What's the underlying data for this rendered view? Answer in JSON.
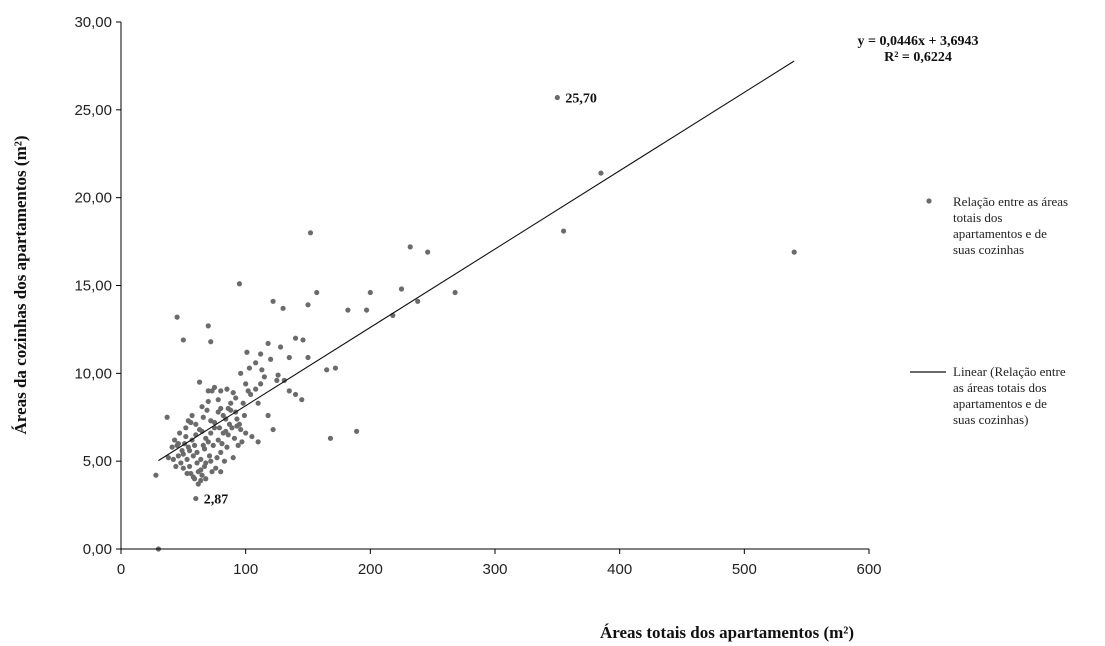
{
  "chart_data": {
    "type": "scatter",
    "xlabel": "Áreas totais dos apartamentos (m²)",
    "ylabel": "Áreas da cozinhas dos apartamentos (m²)",
    "xlim": [
      0,
      600
    ],
    "ylim": [
      0,
      30
    ],
    "x_ticks": [
      "0",
      "100",
      "200",
      "300",
      "400",
      "500",
      "600"
    ],
    "y_ticks": [
      "0,00",
      "5,00",
      "10,00",
      "15,00",
      "20,00",
      "25,00",
      "30,00"
    ],
    "grid": false,
    "legend_position": "right",
    "colors": {
      "points": "#6b6b6b",
      "trend": "#111111",
      "axis": "#000000"
    },
    "series": [
      {
        "name": "Relação entre as áreas totais dos apartamentos e de suas cozinhas",
        "kind": "points",
        "points": [
          [
            30,
            0
          ],
          [
            28,
            4.2
          ],
          [
            38,
            5.2
          ],
          [
            37,
            7.5
          ],
          [
            45,
            13.2
          ],
          [
            50,
            11.9
          ],
          [
            60,
            2.87
          ],
          [
            70,
            12.7
          ],
          [
            72,
            11.8
          ],
          [
            95,
            15.1
          ],
          [
            122,
            14.1
          ],
          [
            150,
            13.9
          ],
          [
            152,
            18
          ],
          [
            157,
            14.6
          ],
          [
            182,
            13.6
          ],
          [
            200,
            14.6
          ],
          [
            197,
            13.6
          ],
          [
            218,
            13.3
          ],
          [
            225,
            14.8
          ],
          [
            232,
            17.2
          ],
          [
            238,
            14.1
          ],
          [
            246,
            16.9
          ],
          [
            268,
            14.6
          ],
          [
            350,
            25.7
          ],
          [
            355,
            18.1
          ],
          [
            385,
            21.4
          ],
          [
            540,
            16.9
          ],
          [
            189,
            6.7
          ],
          [
            168,
            6.3
          ],
          [
            165,
            10.2
          ],
          [
            172,
            10.3
          ],
          [
            130,
            13.7
          ],
          [
            140,
            12
          ],
          [
            128,
            11.5
          ],
          [
            118,
            11.7
          ],
          [
            112,
            11.1
          ],
          [
            101,
            11.2
          ],
          [
            103,
            10.3
          ],
          [
            108,
            10.6
          ],
          [
            113,
            10.2
          ],
          [
            120,
            10.8
          ],
          [
            126,
            9.9
          ],
          [
            131,
            9.6
          ],
          [
            135,
            10.9
          ],
          [
            140,
            8.8
          ],
          [
            145,
            8.5
          ],
          [
            146,
            11.9
          ],
          [
            150,
            10.9
          ],
          [
            108,
            9.1
          ],
          [
            112,
            9.4
          ],
          [
            100,
            9.4
          ],
          [
            90,
            8.9
          ],
          [
            85,
            9.1
          ],
          [
            80,
            9.0
          ],
          [
            78,
            8.5
          ],
          [
            73,
            9.0
          ],
          [
            70,
            8.4
          ],
          [
            75,
            7.2
          ],
          [
            82,
            6.6
          ],
          [
            88,
            7.9
          ],
          [
            93,
            7.4
          ],
          [
            96,
            6.8
          ],
          [
            100,
            6.6
          ],
          [
            105,
            6.4
          ],
          [
            110,
            6.1
          ],
          [
            118,
            7.6
          ],
          [
            122,
            6.8
          ],
          [
            90,
            5.2
          ],
          [
            85,
            5.8
          ],
          [
            80,
            5.5
          ],
          [
            76,
            4.6
          ],
          [
            73,
            4.4
          ],
          [
            68,
            4.9
          ],
          [
            65,
            4.2
          ],
          [
            62,
            3.7
          ],
          [
            58,
            4.1
          ],
          [
            55,
            4.7
          ],
          [
            53,
            5.1
          ],
          [
            50,
            5.4
          ],
          [
            48,
            4.9
          ],
          [
            45,
            5.9
          ],
          [
            43,
            6.2
          ],
          [
            47,
            6.6
          ],
          [
            52,
            6.9
          ],
          [
            56,
            7.2
          ],
          [
            60,
            6.5
          ],
          [
            63,
            6.8
          ],
          [
            66,
            7.5
          ],
          [
            69,
            7.9
          ],
          [
            72,
            7.3
          ],
          [
            75,
            6.9
          ],
          [
            78,
            6.2
          ],
          [
            81,
            6.0
          ],
          [
            84,
            6.7
          ],
          [
            87,
            7.1
          ],
          [
            91,
            6.3
          ],
          [
            94,
            5.9
          ],
          [
            97,
            6.1
          ],
          [
            59,
            5.9
          ],
          [
            61,
            5.5
          ],
          [
            64,
            5.1
          ],
          [
            67,
            5.7
          ],
          [
            70,
            6.1
          ],
          [
            57,
            6.2
          ],
          [
            54,
            5.8
          ],
          [
            51,
            6.0
          ],
          [
            49,
            5.6
          ],
          [
            46,
            5.3
          ],
          [
            44,
            4.7
          ],
          [
            42,
            5.1
          ],
          [
            63,
            9.5
          ],
          [
            70,
            9.0
          ],
          [
            75,
            9.2
          ],
          [
            88,
            8.3
          ],
          [
            82,
            7.6
          ],
          [
            92,
            7.8
          ],
          [
            98,
            8.3
          ],
          [
            104,
            8.8
          ],
          [
            95,
            7.1
          ],
          [
            86,
            6.5
          ],
          [
            79,
            6.9
          ],
          [
            74,
            5.9
          ],
          [
            71,
            5.3
          ],
          [
            67,
            4.7
          ],
          [
            64,
            4.5
          ],
          [
            61,
            4.9
          ],
          [
            58,
            5.3
          ],
          [
            55,
            5.6
          ],
          [
            52,
            6.4
          ],
          [
            56,
            4.3
          ],
          [
            59,
            4.0
          ],
          [
            62,
            4.4
          ],
          [
            66,
            5.9
          ],
          [
            77,
            5.2
          ],
          [
            83,
            5.0
          ],
          [
            89,
            6.9
          ],
          [
            72,
            6.6
          ],
          [
            68,
            6.3
          ],
          [
            65,
            6.7
          ],
          [
            60,
            7.1
          ],
          [
            57,
            7.6
          ],
          [
            54,
            7.3
          ],
          [
            65,
            8.1
          ],
          [
            80,
            8.0
          ],
          [
            86,
            8.0
          ],
          [
            92,
            8.6
          ],
          [
            96,
            10.0
          ],
          [
            102,
            9.0
          ],
          [
            110,
            8.3
          ],
          [
            115,
            9.8
          ],
          [
            125,
            9.6
          ],
          [
            135,
            9.0
          ],
          [
            64,
            3.9
          ],
          [
            68,
            4.0
          ],
          [
            80,
            4.4
          ],
          [
            72,
            5.0
          ],
          [
            46,
            6.0
          ],
          [
            41,
            5.8
          ],
          [
            50,
            4.6
          ],
          [
            53,
            4.3
          ],
          [
            78,
            7.8
          ],
          [
            84,
            7.4
          ],
          [
            93,
            7.0
          ],
          [
            99,
            7.6
          ]
        ]
      },
      {
        "name": "Linear (Relação entre as áreas totais dos apartamentos e de suas cozinhas)",
        "kind": "trendline",
        "slope": 0.0446,
        "intercept": 3.6943,
        "x_range": [
          30,
          540
        ]
      }
    ],
    "annotations": [
      {
        "text": "25,70",
        "x": 350,
        "y": 25.7
      },
      {
        "text": "2,87",
        "x": 60,
        "y": 2.87
      }
    ],
    "equation": "y = 0,0446x + 3,6943",
    "r_squared": "R² = 0,6224",
    "legend": [
      {
        "label": "Relação entre as áreas totais dos apartamentos e de suas cozinhas",
        "symbol": "dot"
      },
      {
        "label": "Linear (Relação entre as áreas totais dos apartamentos e de suas cozinhas)",
        "symbol": "line"
      }
    ]
  }
}
